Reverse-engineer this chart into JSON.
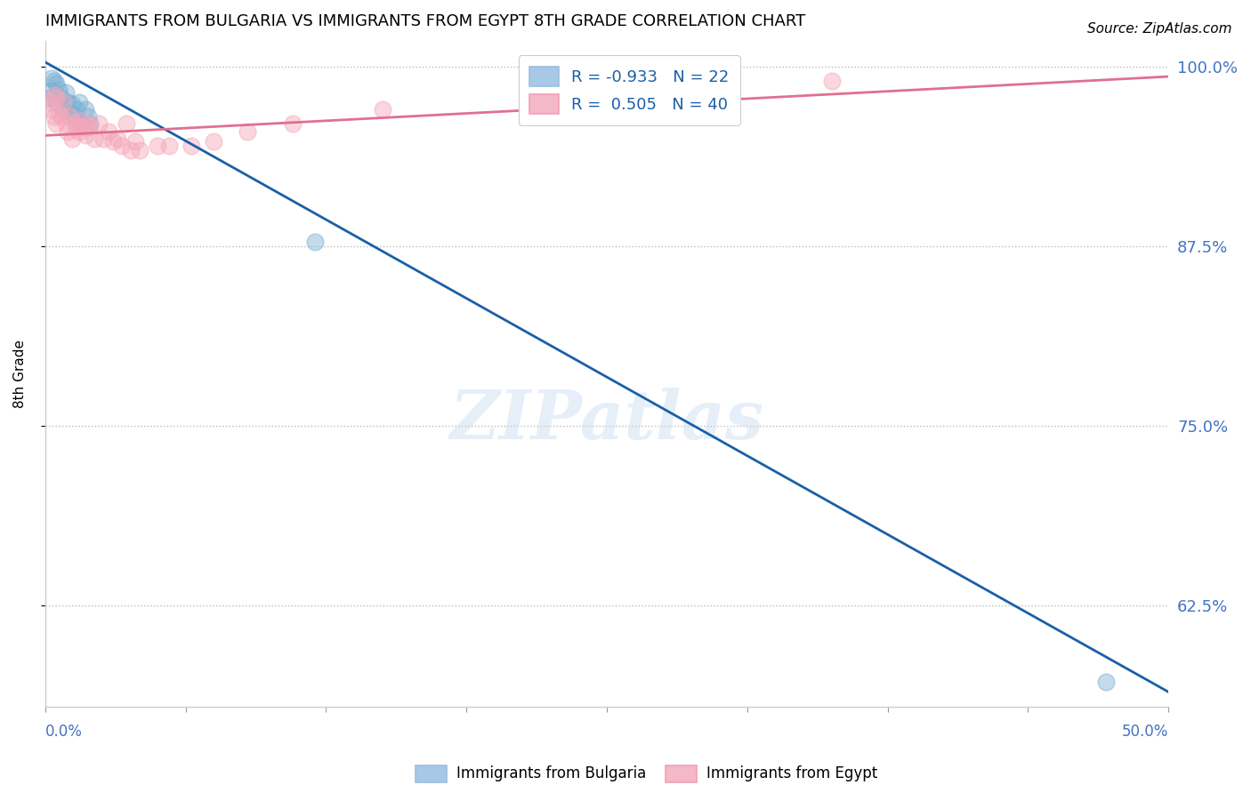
{
  "title": "IMMIGRANTS FROM BULGARIA VS IMMIGRANTS FROM EGYPT 8TH GRADE CORRELATION CHART",
  "source": "Source: ZipAtlas.com",
  "ylabel": "8th Grade",
  "xlim": [
    0.0,
    0.5
  ],
  "ylim": [
    0.555,
    1.018
  ],
  "bulgaria_color": "#7AB0D4",
  "egypt_color": "#F4A7B9",
  "bulgaria_line_color": "#1A5FA8",
  "egypt_line_color": "#E07090",
  "legend_bulgaria_color": "#A8C8E8",
  "legend_egypt_color": "#F4B8C8",
  "R_bulgaria": -0.933,
  "N_bulgaria": 22,
  "R_egypt": 0.505,
  "N_egypt": 40,
  "watermark": "ZIPatlas",
  "ytick_positions": [
    0.625,
    0.75,
    0.875,
    1.0
  ],
  "ytick_labels": [
    "62.5%",
    "75.0%",
    "87.5%",
    "100.0%"
  ],
  "bulgaria_scatter_x": [
    0.002,
    0.003,
    0.003,
    0.004,
    0.005,
    0.005,
    0.006,
    0.007,
    0.008,
    0.009,
    0.01,
    0.011,
    0.012,
    0.013,
    0.014,
    0.015,
    0.016,
    0.018,
    0.019,
    0.02,
    0.12,
    0.472
  ],
  "bulgaria_scatter_y": [
    0.978,
    0.983,
    0.992,
    0.99,
    0.988,
    0.975,
    0.984,
    0.978,
    0.97,
    0.982,
    0.975,
    0.968,
    0.974,
    0.965,
    0.97,
    0.975,
    0.96,
    0.97,
    0.965,
    0.96,
    0.878,
    0.572
  ],
  "egypt_scatter_x": [
    0.002,
    0.003,
    0.004,
    0.004,
    0.005,
    0.005,
    0.006,
    0.007,
    0.008,
    0.009,
    0.01,
    0.011,
    0.012,
    0.013,
    0.014,
    0.015,
    0.016,
    0.017,
    0.018,
    0.019,
    0.02,
    0.022,
    0.024,
    0.026,
    0.028,
    0.03,
    0.032,
    0.034,
    0.036,
    0.038,
    0.04,
    0.042,
    0.05,
    0.055,
    0.065,
    0.075,
    0.09,
    0.11,
    0.15,
    0.35
  ],
  "egypt_scatter_y": [
    0.975,
    0.97,
    0.965,
    0.98,
    0.978,
    0.96,
    0.968,
    0.965,
    0.975,
    0.96,
    0.955,
    0.965,
    0.95,
    0.96,
    0.958,
    0.955,
    0.962,
    0.958,
    0.952,
    0.96,
    0.958,
    0.95,
    0.96,
    0.95,
    0.955,
    0.948,
    0.95,
    0.945,
    0.96,
    0.942,
    0.948,
    0.942,
    0.945,
    0.945,
    0.945,
    0.948,
    0.955,
    0.96,
    0.97,
    0.99
  ],
  "blue_line_x": [
    0.0,
    0.5
  ],
  "blue_line_y": [
    1.003,
    0.565
  ],
  "pink_line_x": [
    0.0,
    0.5
  ],
  "pink_line_y": [
    0.952,
    0.993
  ]
}
